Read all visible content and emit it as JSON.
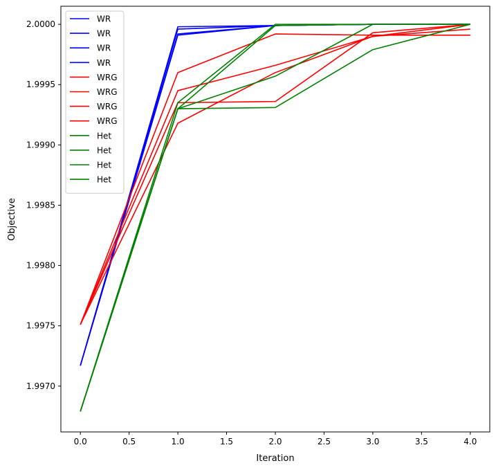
{
  "chart_data": {
    "type": "line",
    "xlabel": "Iteration",
    "ylabel": "Objective",
    "xlim": [
      -0.2,
      4.2
    ],
    "ylim": [
      1.99662,
      2.00015
    ],
    "xticks": [
      0.0,
      0.5,
      1.0,
      1.5,
      2.0,
      2.5,
      3.0,
      3.5,
      4.0
    ],
    "xtick_labels": [
      "0.0",
      "0.5",
      "1.0",
      "1.5",
      "2.0",
      "2.5",
      "3.0",
      "3.5",
      "4.0"
    ],
    "yticks": [
      1.997,
      1.9975,
      1.998,
      1.9985,
      1.999,
      1.9995,
      2.0
    ],
    "ytick_labels": [
      "1.9970",
      "1.9975",
      "1.9980",
      "1.9985",
      "1.9990",
      "1.9995",
      "2.0000"
    ],
    "grid": false,
    "legend_position": "top-left",
    "x": [
      0,
      1,
      2,
      3,
      4
    ],
    "series": [
      {
        "name": "WR",
        "color": "#0000ff",
        "values": [
          1.99717,
          1.99998,
          1.99999,
          2.0,
          2.0
        ]
      },
      {
        "name": "WR",
        "color": "#0000ff",
        "values": [
          1.99717,
          1.99996,
          1.99999,
          2.0,
          2.0
        ]
      },
      {
        "name": "WR",
        "color": "#0000ff",
        "values": [
          1.99717,
          1.99992,
          1.99999,
          2.0,
          2.0
        ]
      },
      {
        "name": "WR",
        "color": "#0000ff",
        "values": [
          1.99717,
          1.99991,
          1.99999,
          2.0,
          2.0
        ]
      },
      {
        "name": "WRG",
        "color": "#ff0000",
        "values": [
          1.99751,
          1.9996,
          1.99992,
          1.99991,
          1.99991
        ]
      },
      {
        "name": "WRG",
        "color": "#ff0000",
        "values": [
          1.99751,
          1.99945,
          1.99966,
          1.9999,
          1.99996
        ]
      },
      {
        "name": "WRG",
        "color": "#ff0000",
        "values": [
          1.99751,
          1.99935,
          1.99936,
          1.99993,
          2.0
        ]
      },
      {
        "name": "WRG",
        "color": "#ff0000",
        "values": [
          1.99751,
          1.99918,
          1.9996,
          1.9999,
          2.0
        ]
      },
      {
        "name": "Het",
        "color": "#008000",
        "values": [
          1.99679,
          1.99935,
          2.0,
          2.0,
          2.0
        ]
      },
      {
        "name": "Het",
        "color": "#008000",
        "values": [
          1.99679,
          1.9993,
          1.99999,
          2.0,
          2.0
        ]
      },
      {
        "name": "Het",
        "color": "#008000",
        "values": [
          1.99679,
          1.9993,
          1.99931,
          1.99979,
          2.0
        ]
      },
      {
        "name": "Het",
        "color": "#008000",
        "values": [
          1.99679,
          1.9993,
          1.99957,
          2.0,
          2.0
        ]
      }
    ]
  }
}
